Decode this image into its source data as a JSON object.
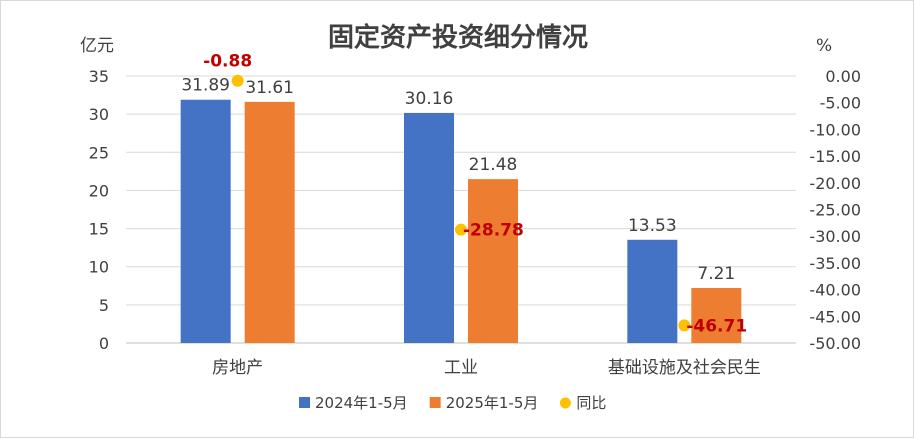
{
  "chart_data": {
    "type": "bar",
    "title": "固定资产投资细分情况",
    "y_unit_left": "亿元",
    "y_unit_right": "%",
    "categories": [
      "房地产",
      "工业",
      "基础设施及社会民生"
    ],
    "series": [
      {
        "name": "2024年1-5月",
        "type": "bar",
        "axis": "left",
        "color": "#4472c4",
        "values": [
          31.89,
          30.16,
          13.53
        ],
        "labels": [
          "31.89",
          "30.16",
          "13.53"
        ]
      },
      {
        "name": "2025年1-5月",
        "type": "bar",
        "axis": "left",
        "color": "#ed7d31",
        "values": [
          31.61,
          21.48,
          7.21
        ],
        "labels": [
          "31.61",
          "21.48",
          "7.21"
        ]
      },
      {
        "name": "同比",
        "type": "scatter",
        "axis": "right",
        "color": "#ffc000",
        "values": [
          -0.88,
          -28.78,
          -46.71
        ],
        "labels": [
          "-0.88",
          "-28.78",
          "-46.71"
        ],
        "label_color": "#c00000"
      }
    ],
    "left_axis": {
      "ylim": [
        0,
        35
      ],
      "ticks": [
        "0",
        "5",
        "10",
        "15",
        "20",
        "25",
        "30",
        "35"
      ]
    },
    "right_axis": {
      "ylim": [
        -50,
        0
      ],
      "ticks": [
        "0.00",
        "-5.00",
        "-10.00",
        "-15.00",
        "-20.00",
        "-25.00",
        "-30.00",
        "-35.00",
        "-40.00",
        "-45.00",
        "-50.00"
      ]
    },
    "grid": true,
    "legend_position": "bottom"
  }
}
